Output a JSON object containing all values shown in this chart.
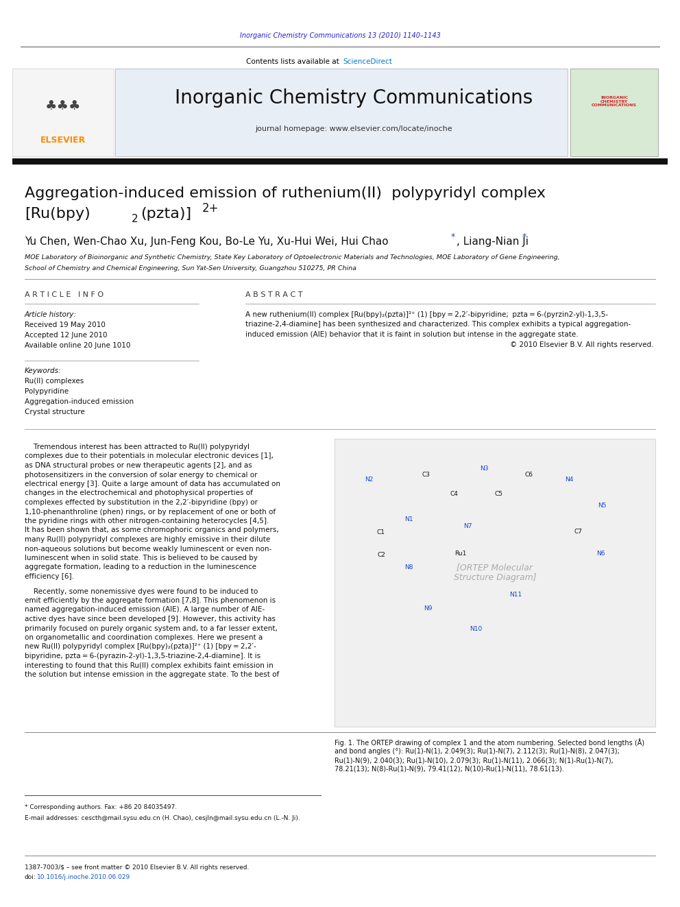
{
  "page_width": 9.92,
  "page_height": 13.23,
  "bg_color": "#ffffff",
  "top_journal_text": "Inorganic Chemistry Communications 13 (2010) 1140–1143",
  "top_journal_color": "#2222cc",
  "journal_name": "Inorganic Chemistry Communications",
  "contents_text": "Contents lists available at ",
  "sciencedirect_text": "ScienceDirect",
  "sciencedirect_color": "#0077cc",
  "homepage_text": "journal homepage: www.elsevier.com/locate/inoche",
  "elsevier_color": "#FF8C00",
  "header_bg": "#e8eef5",
  "article_info_header": "A R T I C L E   I N F O",
  "abstract_header": "A B S T R A C T",
  "article_history_label": "Article history:",
  "received": "Received 19 May 2010",
  "accepted": "Accepted 12 June 2010",
  "available": "Available online 20 June 1010",
  "keywords_label": "Keywords:",
  "keyword1": "Ru(II) complexes",
  "keyword2": "Polypyridine",
  "keyword3": "Aggregation-induced emission",
  "keyword4": "Crystal structure",
  "copyright": "© 2010 Elsevier B.V. All rights reserved.",
  "footer_corresponding": "* Corresponding authors. Fax: +86 20 84035497.",
  "footer_email": "E-mail addresses: cescth@mail.sysu.edu.cn (H. Chao), cesjln@mail.sysu.edu.cn (L.-N. Ji).",
  "footer_issn": "1387-7003/$ – see front matter © 2010 Elsevier B.V. All rights reserved.",
  "footer_doi_label": "doi:",
  "footer_doi_link": "10.1016/j.inoche.2010.06.029"
}
